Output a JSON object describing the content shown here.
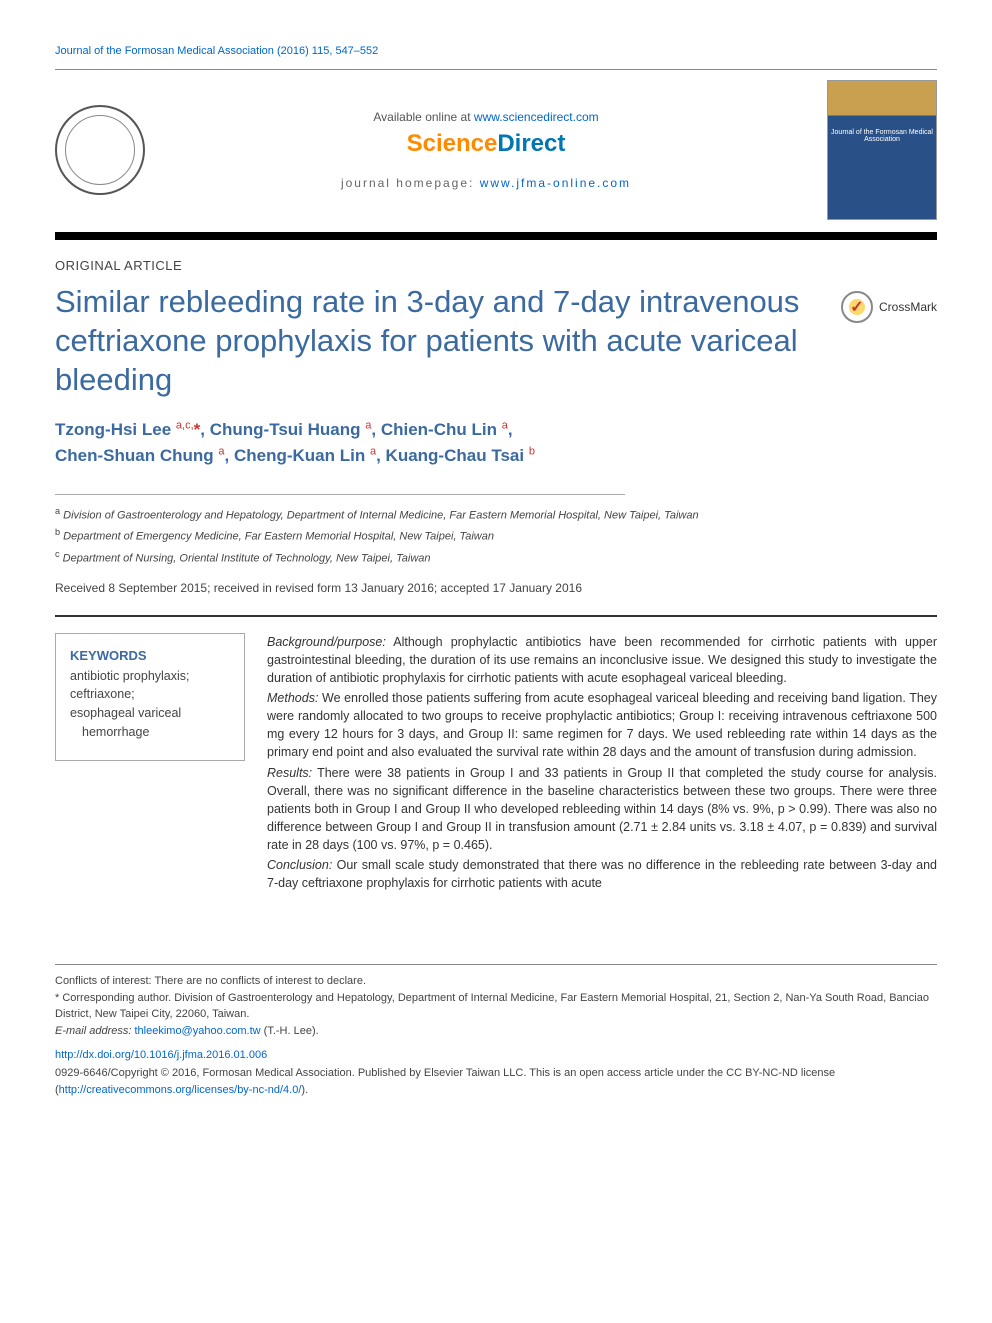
{
  "citation": "Journal of the Formosan Medical Association (2016) 115, 547–552",
  "header": {
    "available_prefix": "Available online at ",
    "available_link": "www.sciencedirect.com",
    "logo_science": "Science",
    "logo_direct": "Direct",
    "homepage_prefix": "journal homepage: ",
    "homepage_link": "www.jfma-online.com",
    "cover_title": "Journal of the\nFormosan Medical Association"
  },
  "article_type": "ORIGINAL ARTICLE",
  "title": "Similar rebleeding rate in 3-day and 7-day intravenous ceftriaxone prophylaxis for patients with acute variceal bleeding",
  "crossmark": "CrossMark",
  "authors": [
    {
      "name": "Tzong-Hsi Lee",
      "aff": "a,c,",
      "star": "*"
    },
    {
      "name": "Chung-Tsui Huang",
      "aff": "a"
    },
    {
      "name": "Chien-Chu Lin",
      "aff": "a"
    },
    {
      "name": "Chen-Shuan Chung",
      "aff": "a"
    },
    {
      "name": "Cheng-Kuan Lin",
      "aff": "a"
    },
    {
      "name": "Kuang-Chau Tsai",
      "aff": "b"
    }
  ],
  "affiliations": {
    "a": "Division of Gastroenterology and Hepatology, Department of Internal Medicine, Far Eastern Memorial Hospital, New Taipei, Taiwan",
    "b": "Department of Emergency Medicine, Far Eastern Memorial Hospital, New Taipei, Taiwan",
    "c": "Department of Nursing, Oriental Institute of Technology, New Taipei, Taiwan"
  },
  "received": "Received 8 September 2015; received in revised form 13 January 2016; accepted 17 January 2016",
  "keywords": {
    "heading": "KEYWORDS",
    "items": [
      "antibiotic prophylaxis;",
      "ceftriaxone;",
      "esophageal variceal hemorrhage"
    ]
  },
  "abstract": {
    "background_label": "Background/purpose:",
    "background": " Although prophylactic antibiotics have been recommended for cirrhotic patients with upper gastrointestinal bleeding, the duration of its use remains an inconclusive issue. We designed this study to investigate the duration of antibiotic prophylaxis for cirrhotic patients with acute esophageal variceal bleeding.",
    "methods_label": "Methods:",
    "methods": " We enrolled those patients suffering from acute esophageal variceal bleeding and receiving band ligation. They were randomly allocated to two groups to receive prophylactic antibiotics; Group I: receiving intravenous ceftriaxone 500 mg every 12 hours for 3 days, and Group II: same regimen for 7 days. We used rebleeding rate within 14 days as the primary end point and also evaluated the survival rate within 28 days and the amount of transfusion during admission.",
    "results_label": "Results:",
    "results": " There were 38 patients in Group I and 33 patients in Group II that completed the study course for analysis. Overall, there was no significant difference in the baseline characteristics between these two groups. There were three patients both in Group I and Group II who developed rebleeding within 14 days (8% vs. 9%, p > 0.99). There was also no difference between Group I and Group II in transfusion amount (2.71 ± 2.84 units vs. 3.18 ± 4.07, p = 0.839) and survival rate in 28 days (100 vs. 97%, p = 0.465).",
    "conclusion_label": "Conclusion:",
    "conclusion": " Our small scale study demonstrated that there was no difference in the rebleeding rate between 3-day and 7-day ceftriaxone prophylaxis for cirrhotic patients with acute"
  },
  "footnotes": {
    "conflicts": "Conflicts of interest: There are no conflicts of interest to declare.",
    "corresponding": "* Corresponding author. Division of Gastroenterology and Hepatology, Department of Internal Medicine, Far Eastern Memorial Hospital, 21, Section 2, Nan-Ya South Road, Banciao District, New Taipei City, 22060, Taiwan.",
    "email_label": "E-mail address: ",
    "email": "thleekimo@yahoo.com.tw",
    "email_suffix": " (T.-H. Lee)."
  },
  "doi": "http://dx.doi.org/10.1016/j.jfma.2016.01.006",
  "copyright": {
    "line1": "0929-6646/Copyright © 2016, Formosan Medical Association. Published by Elsevier Taiwan LLC. This is an open access article under the CC BY-NC-ND license (",
    "license_link": "http://creativecommons.org/licenses/by-nc-nd/4.0/",
    "line2": ")."
  },
  "colors": {
    "link": "#0066cc",
    "heading": "#3b6aa0",
    "accent_orange": "#ff8a00",
    "accent_teal": "#0077b3",
    "rule_dark": "#000000",
    "text": "#333333"
  }
}
